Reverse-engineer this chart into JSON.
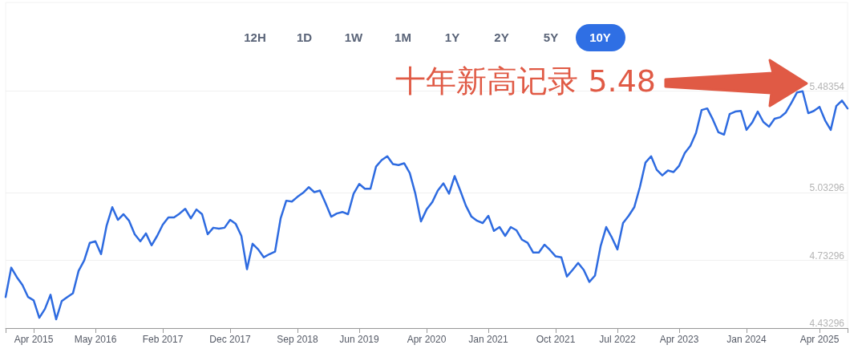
{
  "chart_data": {
    "type": "line",
    "categories": [
      null,
      null,
      null,
      null,
      null,
      "Apr 2015",
      null,
      null,
      null,
      null,
      null,
      null,
      null,
      null,
      null,
      null,
      "May 2016",
      null,
      null,
      null,
      null,
      null,
      null,
      null,
      null,
      null,
      null,
      null,
      "Feb 2017",
      null,
      null,
      null,
      null,
      null,
      null,
      null,
      null,
      null,
      null,
      null,
      "Dec 2017",
      null,
      null,
      null,
      null,
      null,
      null,
      null,
      null,
      null,
      null,
      null,
      "Sep 2018",
      null,
      null,
      null,
      null,
      null,
      null,
      null,
      null,
      null,
      null,
      "Jun 2019",
      null,
      null,
      null,
      null,
      null,
      null,
      null,
      null,
      null,
      null,
      null,
      "Apr 2020",
      null,
      null,
      null,
      null,
      null,
      null,
      null,
      null,
      null,
      null,
      "Jan 2021",
      null,
      null,
      null,
      null,
      null,
      null,
      null,
      null,
      null,
      null,
      null,
      "Oct 2021",
      null,
      null,
      null,
      null,
      null,
      null,
      null,
      null,
      null,
      null,
      "Jul 2022",
      null,
      null,
      null,
      null,
      null,
      null,
      null,
      null,
      null,
      null,
      "Apr 2023",
      null,
      null,
      null,
      null,
      null,
      null,
      null,
      null,
      null,
      null,
      null,
      "Jan 2024",
      null,
      null,
      null,
      null,
      null,
      null,
      null,
      null,
      null,
      null,
      null,
      null,
      "Apr 2025",
      null,
      null,
      null,
      null,
      null
    ],
    "series": [
      {
        "color": "#2e6be0",
        "values": [
          4.571,
          4.701,
          4.659,
          4.624,
          4.571,
          4.556,
          4.479,
          4.518,
          4.581,
          4.472,
          4.553,
          4.571,
          4.588,
          4.687,
          4.733,
          4.811,
          4.818,
          4.761,
          4.888,
          4.969,
          4.913,
          4.938,
          4.909,
          4.849,
          4.818,
          4.853,
          4.8,
          4.842,
          4.892,
          4.924,
          4.924,
          4.941,
          4.962,
          4.92,
          4.959,
          4.938,
          4.849,
          4.878,
          4.874,
          4.878,
          4.913,
          4.895,
          4.842,
          4.694,
          4.807,
          4.782,
          4.747,
          4.761,
          4.772,
          4.92,
          4.998,
          4.994,
          5.015,
          5.033,
          5.058,
          5.036,
          5.043,
          4.987,
          4.927,
          4.941,
          4.948,
          4.938,
          5.029,
          5.072,
          5.051,
          5.051,
          5.149,
          5.178,
          5.195,
          5.16,
          5.156,
          5.164,
          5.121,
          5.029,
          4.906,
          4.959,
          4.991,
          5.043,
          5.075,
          5.029,
          5.107,
          5.043,
          4.976,
          4.927,
          4.909,
          4.899,
          4.931,
          4.864,
          4.881,
          4.842,
          4.881,
          4.867,
          4.825,
          4.811,
          4.768,
          4.768,
          4.803,
          4.779,
          4.751,
          4.747,
          4.662,
          4.691,
          4.722,
          4.691,
          4.638,
          4.666,
          4.796,
          4.881,
          4.835,
          4.782,
          4.899,
          4.931,
          4.969,
          5.058,
          5.167,
          5.195,
          5.135,
          5.11,
          5.132,
          5.125,
          5.153,
          5.209,
          5.241,
          5.298,
          5.4,
          5.407,
          5.358,
          5.301,
          5.291,
          5.382,
          5.393,
          5.396,
          5.312,
          5.344,
          5.393,
          5.347,
          5.326,
          5.361,
          5.368,
          5.389,
          5.432,
          5.478,
          5.483,
          5.386,
          5.396,
          5.414,
          5.354,
          5.312,
          5.418,
          5.442,
          5.407
        ]
      }
    ],
    "ylim": [
      4.43296,
      5.877
    ],
    "yticks": [
      4.43296,
      4.73296,
      5.03296,
      5.48354
    ],
    "grid": "y",
    "marker": "none",
    "line_style": "solid",
    "annotations": [
      "12H",
      "1D",
      "1W",
      "1M",
      "1Y",
      "2Y",
      "5Y",
      "10Y",
      "十年新高记录 5.48"
    ]
  }
}
